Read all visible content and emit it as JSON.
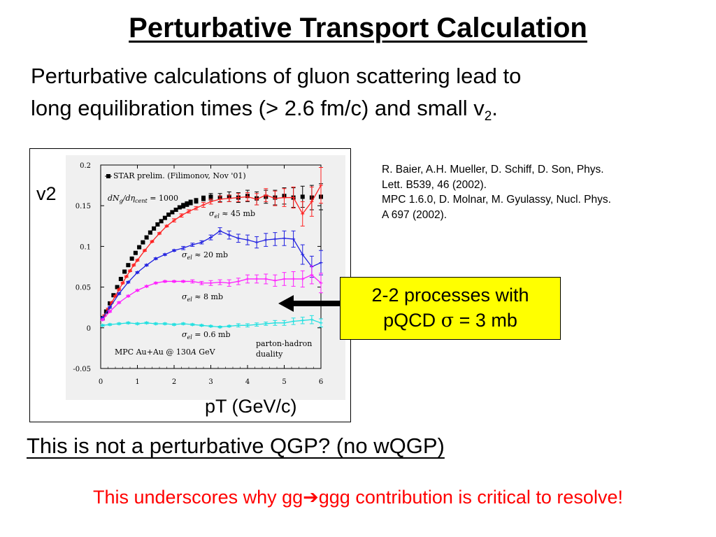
{
  "slide": {
    "title": "Perturbative Transport Calculation",
    "intro_line1": "Perturbative calculations of gluon scattering lead to",
    "intro_line2": "long equilibration times (> 2.6 fm/c) and small v",
    "intro_sub": "2",
    "intro_end": ".",
    "refs": [
      "R. Baier, A.H. Mueller, D. Schiff, D. Son, Phys.",
      "Lett. B539, 46 (2002).",
      "MPC 1.6.0, D. Molnar, M. Gyulassy, Nucl. Phys.",
      "A 697 (2002)."
    ],
    "callout_line1": "2-2 processes with",
    "callout_pre": "pQCD ",
    "callout_sigma": "σ",
    "callout_post": " = 3 mb",
    "question": "This is not a perturbative QGP?  (no wQGP)",
    "conclusion_pre": "This underscores why gg",
    "conclusion_arrow": "➔",
    "conclusion_post": "ggg contribution is critical to resolve!",
    "v2_label": "v2",
    "pt_label": "pT (GeV/c)"
  },
  "colors": {
    "star": "#000000",
    "s45": "#ff2020",
    "s20": "#2020e0",
    "s8": "#ff20ff",
    "s06": "#20e0e0",
    "callout_bg": "#ffff00",
    "conclusion": "#ff0000"
  },
  "chart_data": {
    "type": "line",
    "xlim": [
      0,
      6
    ],
    "ylim": [
      -0.05,
      0.2
    ],
    "x_ticks": [
      "0",
      "1",
      "2",
      "3",
      "4",
      "5",
      "6"
    ],
    "y_ticks": [
      "-0.05",
      "0",
      "0.05",
      "0.1",
      "0.15",
      "0.2"
    ],
    "legend_star": "STAR prelim. (Filimonov, Nov '01)",
    "legend_dn": "dN",
    "legend_dn_sub": "g",
    "legend_deta": "/dη",
    "legend_deta_sub": "cent",
    "legend_dn_val": " = 1000",
    "bottom_left": "MPC Au+Au @ 130",
    "bottom_left_A": "A",
    "bottom_left_end": " GeV",
    "parton_hadron_1": "parton-hadron",
    "parton_hadron_2": "duality",
    "series": [
      {
        "name": "STAR prelim.",
        "kind": "star",
        "color_key": "star",
        "x": [
          0.05,
          0.15,
          0.25,
          0.35,
          0.45,
          0.55,
          0.65,
          0.75,
          0.85,
          0.95,
          1.05,
          1.15,
          1.25,
          1.35,
          1.45,
          1.55,
          1.65,
          1.75,
          1.85,
          1.95,
          2.05,
          2.15,
          2.25,
          2.35,
          2.45,
          2.6,
          2.8,
          3.0,
          3.25,
          3.5,
          3.75,
          4.0,
          4.25,
          4.5,
          4.75,
          5.0,
          5.25,
          5.5,
          5.75,
          6.0
        ],
        "y": [
          0.012,
          0.02,
          0.03,
          0.04,
          0.05,
          0.06,
          0.069,
          0.077,
          0.085,
          0.092,
          0.099,
          0.105,
          0.111,
          0.117,
          0.122,
          0.127,
          0.131,
          0.135,
          0.139,
          0.142,
          0.145,
          0.148,
          0.15,
          0.152,
          0.154,
          0.156,
          0.159,
          0.161,
          0.16,
          0.161,
          0.16,
          0.162,
          0.159,
          0.161,
          0.16,
          0.162,
          0.16,
          0.161,
          0.16,
          0.161
        ],
        "err": [
          0.001,
          0.001,
          0.001,
          0.001,
          0.001,
          0.001,
          0.001,
          0.001,
          0.001,
          0.001,
          0.001,
          0.001,
          0.002,
          0.002,
          0.002,
          0.002,
          0.002,
          0.002,
          0.002,
          0.002,
          0.002,
          0.002,
          0.003,
          0.003,
          0.003,
          0.003,
          0.003,
          0.004,
          0.005,
          0.006,
          0.006,
          0.007,
          0.008,
          0.008,
          0.009,
          0.01,
          0.012,
          0.013,
          0.015,
          0.016
        ]
      },
      {
        "name": "σel ≈ 45 mb",
        "label_sigma": "σ",
        "label_sub": "el",
        "label_rest": " ≈ 45 mb",
        "kind": "theory",
        "color_key": "s45",
        "x": [
          0.1,
          0.2,
          0.3,
          0.4,
          0.5,
          0.6,
          0.7,
          0.8,
          0.9,
          1.0,
          1.2,
          1.4,
          1.6,
          1.8,
          2.0,
          2.2,
          2.4,
          2.6,
          2.8,
          3.0,
          3.25,
          3.5,
          3.75,
          4.0,
          4.25,
          4.5,
          4.75,
          5.0,
          5.25,
          5.5,
          5.75,
          6.0
        ],
        "y": [
          0.015,
          0.023,
          0.031,
          0.039,
          0.047,
          0.055,
          0.063,
          0.07,
          0.077,
          0.083,
          0.095,
          0.106,
          0.116,
          0.125,
          0.132,
          0.138,
          0.143,
          0.147,
          0.151,
          0.155,
          0.158,
          0.159,
          0.16,
          0.161,
          0.158,
          0.163,
          0.159,
          0.16,
          0.16,
          0.14,
          0.155,
          0.175
        ],
        "err": [
          0.001,
          0.001,
          0.001,
          0.001,
          0.001,
          0.001,
          0.001,
          0.001,
          0.001,
          0.001,
          0.001,
          0.001,
          0.001,
          0.001,
          0.002,
          0.002,
          0.002,
          0.002,
          0.003,
          0.003,
          0.004,
          0.004,
          0.005,
          0.005,
          0.007,
          0.008,
          0.009,
          0.011,
          0.013,
          0.015,
          0.018,
          0.022
        ]
      },
      {
        "name": "σel ≈ 20 mb",
        "label_sigma": "σ",
        "label_sub": "el",
        "label_rest": " ≈ 20 mb",
        "kind": "theory",
        "color_key": "s20",
        "x": [
          0.05,
          0.25,
          0.5,
          0.75,
          1.0,
          1.25,
          1.5,
          1.75,
          2.0,
          2.25,
          2.5,
          2.75,
          3.0,
          3.25,
          3.5,
          3.75,
          4.0,
          4.25,
          4.5,
          4.75,
          5.0,
          5.25,
          5.5,
          5.75,
          6.0
        ],
        "y": [
          0.012,
          0.025,
          0.042,
          0.056,
          0.068,
          0.077,
          0.085,
          0.09,
          0.095,
          0.098,
          0.102,
          0.105,
          0.111,
          0.119,
          0.114,
          0.11,
          0.108,
          0.105,
          0.108,
          0.109,
          0.11,
          0.109,
          0.09,
          0.075,
          0.08
        ],
        "err": [
          0.001,
          0.001,
          0.001,
          0.001,
          0.001,
          0.001,
          0.001,
          0.001,
          0.001,
          0.002,
          0.002,
          0.002,
          0.003,
          0.004,
          0.005,
          0.005,
          0.006,
          0.007,
          0.008,
          0.008,
          0.009,
          0.01,
          0.012,
          0.013,
          0.015
        ]
      },
      {
        "name": "σel ≈ 8 mb",
        "label_sigma": "σ",
        "label_sub": "el",
        "label_rest": " ≈ 8 mb",
        "kind": "theory",
        "color_key": "s8",
        "x": [
          0.05,
          0.25,
          0.5,
          0.75,
          1.0,
          1.25,
          1.5,
          1.75,
          2.0,
          2.25,
          2.5,
          2.75,
          3.0,
          3.25,
          3.5,
          3.75,
          4.0,
          4.25,
          4.5,
          4.75,
          5.0,
          5.25,
          5.5,
          5.75,
          6.0
        ],
        "y": [
          0.01,
          0.02,
          0.031,
          0.039,
          0.046,
          0.051,
          0.055,
          0.057,
          0.057,
          0.057,
          0.057,
          0.055,
          0.055,
          0.056,
          0.055,
          0.057,
          0.06,
          0.06,
          0.06,
          0.058,
          0.06,
          0.06,
          0.06,
          0.065,
          0.055
        ],
        "err": [
          0.001,
          0.001,
          0.001,
          0.001,
          0.001,
          0.001,
          0.001,
          0.001,
          0.001,
          0.001,
          0.002,
          0.002,
          0.003,
          0.003,
          0.004,
          0.004,
          0.005,
          0.005,
          0.006,
          0.007,
          0.008,
          0.009,
          0.01,
          0.011,
          0.012
        ]
      },
      {
        "name": "σel = 0.6 mb",
        "label_sigma": "σ",
        "label_sub": "el",
        "label_rest": " = 0.6 mb",
        "kind": "theory",
        "color_key": "s06",
        "x": [
          0.05,
          0.25,
          0.5,
          0.75,
          1.0,
          1.25,
          1.5,
          1.75,
          2.0,
          2.25,
          2.5,
          2.75,
          3.0,
          3.25,
          3.5,
          3.75,
          4.0,
          4.25,
          4.5,
          4.75,
          5.0,
          5.25,
          5.5,
          5.75,
          6.0
        ],
        "y": [
          0.003,
          0.004,
          0.005,
          0.006,
          0.005,
          0.006,
          0.005,
          0.005,
          0.004,
          0.005,
          0.004,
          0.003,
          0.002,
          0.001,
          0.002,
          0.003,
          0.003,
          0.004,
          0.005,
          0.006,
          0.006,
          0.008,
          0.009,
          0.01,
          0.006
        ],
        "err": [
          0.001,
          0.001,
          0.001,
          0.001,
          0.001,
          0.001,
          0.001,
          0.001,
          0.001,
          0.001,
          0.001,
          0.001,
          0.001,
          0.001,
          0.001,
          0.002,
          0.002,
          0.002,
          0.002,
          0.003,
          0.003,
          0.004,
          0.004,
          0.005,
          0.005
        ]
      }
    ]
  }
}
